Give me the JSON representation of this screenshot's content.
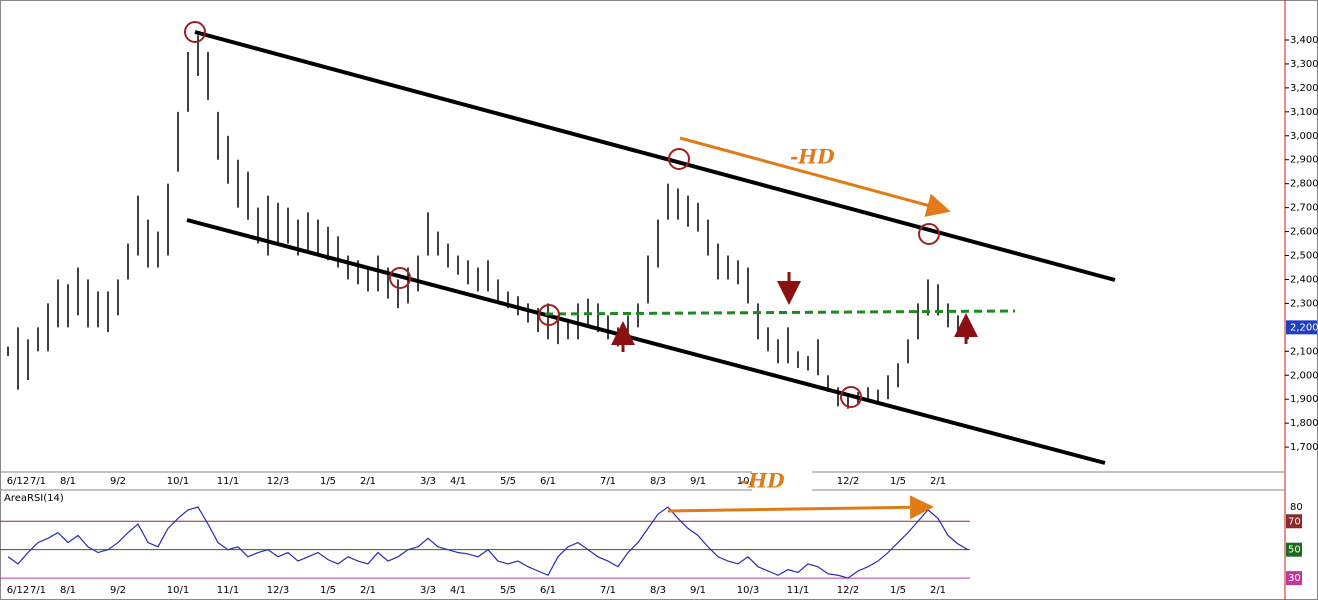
{
  "chart_data": [
    {
      "type": "ohlc",
      "categories": [
        null,
        "6/12",
        null,
        "7/1",
        null,
        null,
        "8/1",
        null,
        null,
        null,
        null,
        "9/2",
        null,
        null,
        null,
        null,
        null,
        "10/1",
        null,
        null,
        null,
        null,
        "11/1",
        null,
        null,
        null,
        null,
        "12/3",
        null,
        null,
        null,
        null,
        "1/5",
        null,
        null,
        null,
        "2/1",
        null,
        null,
        null,
        null,
        null,
        "3/3",
        null,
        null,
        "4/1",
        null,
        null,
        null,
        null,
        "5/5",
        null,
        null,
        null,
        "6/1",
        null,
        null,
        null,
        null,
        null,
        "7/1",
        null,
        null,
        null,
        null,
        "8/3",
        null,
        null,
        null,
        "9/1",
        null,
        null,
        null,
        null,
        "10/3",
        null,
        null,
        null,
        null,
        "11/1",
        null,
        null,
        null,
        null,
        "12/2",
        null,
        null,
        null,
        null,
        "1/5",
        null,
        null,
        null,
        "2/1",
        null,
        null,
        null
      ],
      "high": [
        2120,
        2200,
        2150,
        2200,
        2300,
        2400,
        2380,
        2450,
        2400,
        2350,
        2350,
        2400,
        2550,
        2750,
        2650,
        2600,
        2800,
        3100,
        3350,
        3420,
        3350,
        3100,
        3000,
        2900,
        2850,
        2700,
        2750,
        2720,
        2700,
        2650,
        2680,
        2650,
        2620,
        2580,
        2500,
        2480,
        2450,
        2500,
        2450,
        2400,
        2450,
        2500,
        2680,
        2600,
        2550,
        2500,
        2480,
        2450,
        2480,
        2400,
        2350,
        2330,
        2300,
        2280,
        2300,
        2250,
        2220,
        2300,
        2320,
        2300,
        2250,
        2200,
        2250,
        2300,
        2500,
        2650,
        2800,
        2780,
        2750,
        2720,
        2650,
        2550,
        2500,
        2480,
        2450,
        2300,
        2200,
        2150,
        2200,
        2100,
        2080,
        2150,
        2000,
        1950,
        1920,
        1930,
        1950,
        1940,
        2000,
        2050,
        2150,
        2300,
        2400,
        2380,
        2300,
        2250,
        2220
      ],
      "low": [
        2080,
        1940,
        1980,
        2100,
        2100,
        2200,
        2200,
        2250,
        2200,
        2200,
        2180,
        2250,
        2400,
        2500,
        2450,
        2450,
        2500,
        2850,
        3100,
        3250,
        3150,
        2900,
        2800,
        2700,
        2650,
        2550,
        2500,
        2550,
        2550,
        2500,
        2520,
        2500,
        2480,
        2450,
        2400,
        2380,
        2350,
        2350,
        2320,
        2280,
        2300,
        2350,
        2500,
        2500,
        2450,
        2420,
        2380,
        2350,
        2350,
        2300,
        2280,
        2250,
        2220,
        2180,
        2150,
        2130,
        2150,
        2150,
        2200,
        2180,
        2150,
        2120,
        2150,
        2200,
        2300,
        2450,
        2650,
        2650,
        2620,
        2600,
        2500,
        2400,
        2400,
        2380,
        2300,
        2150,
        2100,
        2050,
        2050,
        2030,
        2020,
        2000,
        1930,
        1870,
        1860,
        1880,
        1890,
        1890,
        1900,
        1950,
        2050,
        2150,
        2250,
        2250,
        2200,
        2170,
        2150
      ],
      "color": "#000000",
      "ylim": [
        1596,
        3567
      ],
      "yticks": [
        {
          "value": 1700,
          "label": "1,700"
        },
        {
          "value": 1800,
          "label": "1,800"
        },
        {
          "value": 1900,
          "label": "1,900"
        },
        {
          "value": 2000,
          "label": "2,000"
        },
        {
          "value": 2100,
          "label": "2,100"
        },
        {
          "value": 2300,
          "label": "2,300"
        },
        {
          "value": 2400,
          "label": "2,400"
        },
        {
          "value": 2500,
          "label": "2,500"
        },
        {
          "value": 2600,
          "label": "2,600"
        },
        {
          "value": 2700,
          "label": "2,700"
        },
        {
          "value": 2800,
          "label": "2,800"
        },
        {
          "value": 2900,
          "label": "2,900"
        },
        {
          "value": 3000,
          "label": "3,000"
        },
        {
          "value": 3100,
          "label": "3,100"
        },
        {
          "value": 3200,
          "label": "3,200"
        },
        {
          "value": 3300,
          "label": "3,300"
        },
        {
          "value": 3400,
          "label": "3,400"
        }
      ],
      "last_price": {
        "value": 2200,
        "label": "2,200"
      },
      "annotations": [
        "-HD",
        "-HD"
      ]
    },
    {
      "type": "line",
      "title": "AreaRSI(14)",
      "categories": [
        null,
        "6/12",
        null,
        "7/1",
        null,
        null,
        "8/1",
        null,
        null,
        null,
        null,
        "9/2",
        null,
        null,
        null,
        null,
        null,
        "10/1",
        null,
        null,
        null,
        null,
        "11/1",
        null,
        null,
        null,
        null,
        "12/3",
        null,
        null,
        null,
        null,
        "1/5",
        null,
        null,
        null,
        "2/1",
        null,
        null,
        null,
        null,
        null,
        "3/3",
        null,
        null,
        "4/1",
        null,
        null,
        null,
        null,
        "5/5",
        null,
        null,
        null,
        "6/1",
        null,
        null,
        null,
        null,
        null,
        "7/1",
        null,
        null,
        null,
        null,
        "8/3",
        null,
        null,
        null,
        "9/1",
        null,
        null,
        null,
        null,
        "10/3",
        null,
        null,
        null,
        null,
        "11/1",
        null,
        null,
        null,
        null,
        "12/2",
        null,
        null,
        null,
        null,
        "1/5",
        null,
        null,
        null,
        "2/1",
        null,
        null,
        null
      ],
      "values": [
        45,
        40,
        48,
        55,
        58,
        62,
        55,
        60,
        52,
        48,
        50,
        55,
        62,
        68,
        55,
        52,
        65,
        72,
        78,
        80,
        68,
        55,
        50,
        52,
        45,
        48,
        50,
        45,
        48,
        42,
        45,
        48,
        43,
        40,
        45,
        42,
        40,
        48,
        42,
        45,
        50,
        52,
        58,
        52,
        50,
        48,
        47,
        45,
        50,
        42,
        40,
        42,
        38,
        35,
        32,
        45,
        52,
        55,
        50,
        45,
        42,
        38,
        48,
        55,
        65,
        75,
        80,
        72,
        65,
        60,
        52,
        45,
        42,
        40,
        45,
        38,
        35,
        32,
        36,
        34,
        40,
        38,
        33,
        32,
        30,
        35,
        38,
        42,
        48,
        55,
        62,
        70,
        78,
        72,
        60,
        54,
        50
      ],
      "color": "#2b2bb0",
      "ylim": [
        16,
        92
      ],
      "yticks": [
        80
      ],
      "levels": [
        {
          "value": 70,
          "color": "#8b2a2a"
        },
        {
          "value": 50,
          "color": "#1e6b1e"
        },
        {
          "value": 30,
          "color": "#c0389a"
        }
      ]
    }
  ]
}
